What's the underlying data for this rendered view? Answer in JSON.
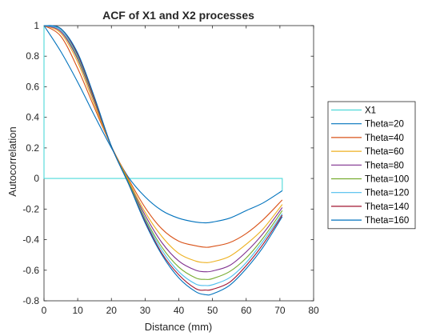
{
  "chart_data": {
    "type": "line",
    "title": "ACF of X1 and X2 processes",
    "xlabel": "Distance (mm)",
    "ylabel": "Autocorrelation",
    "xlim": [
      0,
      80
    ],
    "ylim": [
      -0.8,
      1
    ],
    "xticks": [
      0,
      10,
      20,
      30,
      40,
      50,
      60,
      70,
      80
    ],
    "yticks": [
      1,
      0.8,
      0.6,
      0.4,
      0.2,
      0,
      -0.2,
      -0.4,
      -0.6,
      -0.8
    ],
    "grid": false,
    "legend_position": "outside-right",
    "series": [
      {
        "name": "X1",
        "color": "#4dd9d9",
        "x": [
          0,
          0,
          0.5,
          70.7,
          70.7
        ],
        "y": [
          1,
          0,
          0,
          0,
          -0.08
        ]
      },
      {
        "name": "Theta=20",
        "color": "#0072bd",
        "x": [
          0,
          5,
          10,
          15,
          20,
          25,
          30,
          35,
          40,
          45,
          48,
          50,
          55,
          60,
          65,
          70.7
        ],
        "y": [
          1,
          0.83,
          0.63,
          0.41,
          0.2,
          0.01,
          -0.12,
          -0.21,
          -0.26,
          -0.285,
          -0.29,
          -0.285,
          -0.26,
          -0.21,
          -0.16,
          -0.08
        ]
      },
      {
        "name": "Theta=40",
        "color": "#d95319",
        "x": [
          0,
          5,
          10,
          15,
          20,
          25,
          30,
          35,
          40,
          45,
          48,
          50,
          55,
          60,
          65,
          70.7
        ],
        "y": [
          1,
          0.93,
          0.72,
          0.46,
          0.21,
          0.0,
          -0.19,
          -0.33,
          -0.41,
          -0.44,
          -0.45,
          -0.445,
          -0.42,
          -0.36,
          -0.27,
          -0.14
        ]
      },
      {
        "name": "Theta=60",
        "color": "#edb120",
        "x": [
          0,
          5,
          10,
          15,
          20,
          25,
          30,
          35,
          40,
          45,
          48,
          50,
          55,
          60,
          65,
          70.7
        ],
        "y": [
          1,
          0.95,
          0.76,
          0.48,
          0.21,
          -0.01,
          -0.22,
          -0.38,
          -0.49,
          -0.54,
          -0.55,
          -0.545,
          -0.51,
          -0.43,
          -0.33,
          -0.17
        ]
      },
      {
        "name": "Theta=80",
        "color": "#7e2f8e",
        "x": [
          0,
          5,
          10,
          15,
          20,
          25,
          30,
          35,
          40,
          45,
          48,
          50,
          55,
          60,
          65,
          70.7
        ],
        "y": [
          1,
          0.96,
          0.78,
          0.5,
          0.21,
          -0.02,
          -0.24,
          -0.42,
          -0.54,
          -0.6,
          -0.61,
          -0.605,
          -0.57,
          -0.48,
          -0.36,
          -0.19
        ]
      },
      {
        "name": "Theta=100",
        "color": "#77ac30",
        "x": [
          0,
          5,
          10,
          15,
          20,
          25,
          30,
          35,
          40,
          45,
          48,
          50,
          55,
          60,
          65,
          70.7
        ],
        "y": [
          1,
          0.97,
          0.79,
          0.51,
          0.21,
          -0.02,
          -0.26,
          -0.45,
          -0.58,
          -0.65,
          -0.66,
          -0.655,
          -0.61,
          -0.52,
          -0.39,
          -0.21
        ]
      },
      {
        "name": "Theta=120",
        "color": "#4dbeee",
        "x": [
          0,
          5,
          10,
          15,
          20,
          25,
          30,
          35,
          40,
          45,
          48,
          50,
          55,
          60,
          65,
          70.7
        ],
        "y": [
          1,
          0.97,
          0.8,
          0.52,
          0.21,
          -0.03,
          -0.27,
          -0.47,
          -0.61,
          -0.69,
          -0.7,
          -0.695,
          -0.65,
          -0.55,
          -0.41,
          -0.23
        ]
      },
      {
        "name": "Theta=140",
        "color": "#a2142f",
        "x": [
          0,
          5,
          10,
          15,
          20,
          25,
          30,
          35,
          40,
          45,
          48,
          50,
          55,
          60,
          65,
          70.7
        ],
        "y": [
          1,
          0.98,
          0.81,
          0.52,
          0.21,
          -0.03,
          -0.28,
          -0.49,
          -0.63,
          -0.72,
          -0.73,
          -0.725,
          -0.68,
          -0.57,
          -0.43,
          -0.24
        ]
      },
      {
        "name": "Theta=160",
        "color": "#0072bd",
        "x": [
          0,
          5,
          10,
          15,
          20,
          25,
          30,
          35,
          40,
          45,
          48,
          50,
          55,
          60,
          65,
          70.7
        ],
        "y": [
          1,
          0.98,
          0.82,
          0.53,
          0.21,
          -0.03,
          -0.29,
          -0.5,
          -0.65,
          -0.74,
          -0.76,
          -0.755,
          -0.7,
          -0.59,
          -0.45,
          -0.25
        ]
      }
    ]
  }
}
